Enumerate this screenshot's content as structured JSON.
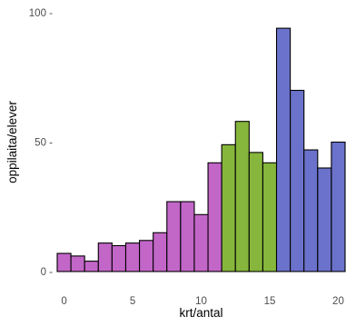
{
  "chart_data": {
    "type": "bar",
    "xlabel": "krt/antal",
    "ylabel": "oppilaita/elever",
    "xlim": [
      -0.5,
      20.5
    ],
    "ylim": [
      0,
      100
    ],
    "x_ticks": [
      0,
      5,
      10,
      15,
      20
    ],
    "x_tick_labels": [
      "0",
      "5",
      "10",
      "15",
      "20"
    ],
    "y_ticks": [
      0,
      50,
      100
    ],
    "y_tick_labels": [
      "0 -",
      "50 -",
      "100 -"
    ],
    "grid": false,
    "legend": "none",
    "groups": [
      {
        "range": [
          0,
          11
        ],
        "color": "#c266c8"
      },
      {
        "range": [
          12,
          15
        ],
        "color": "#86b63c"
      },
      {
        "range": [
          16,
          20
        ],
        "color": "#6b72cb"
      }
    ],
    "x": [
      0,
      1,
      2,
      3,
      4,
      5,
      6,
      7,
      8,
      9,
      10,
      11,
      12,
      13,
      14,
      15,
      16,
      17,
      18,
      19,
      20
    ],
    "values": [
      7,
      6,
      4,
      11,
      10,
      11,
      12,
      15,
      27,
      27,
      22,
      42,
      49,
      58,
      46,
      42,
      94,
      70,
      47,
      40,
      50
    ],
    "colors": [
      "#c266c8",
      "#c266c8",
      "#c266c8",
      "#c266c8",
      "#c266c8",
      "#c266c8",
      "#c266c8",
      "#c266c8",
      "#c266c8",
      "#c266c8",
      "#c266c8",
      "#c266c8",
      "#86b63c",
      "#86b63c",
      "#86b63c",
      "#86b63c",
      "#6b72cb",
      "#6b72cb",
      "#6b72cb",
      "#6b72cb",
      "#6b72cb"
    ],
    "bar_stroke": "#000000"
  }
}
